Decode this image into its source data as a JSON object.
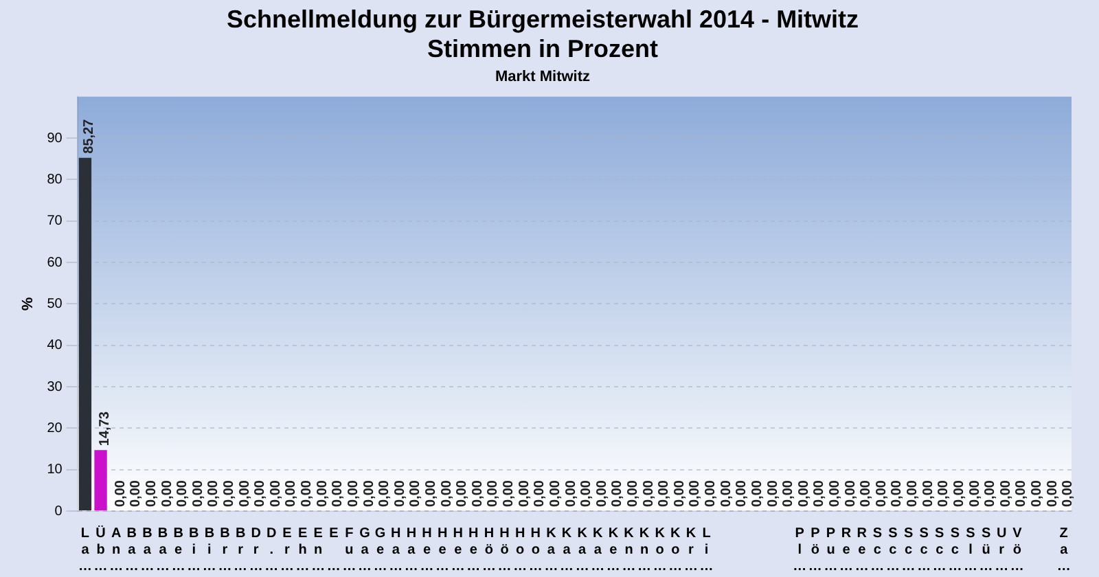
{
  "chart_data": {
    "type": "bar",
    "title": "Schnellmeldung zur Bürgermeisterwahl 2014 - Mitwitz\nStimmen in Prozent",
    "subtitle": "Markt Mitwitz",
    "ylabel": "%",
    "categories": [
      "L\na\n…",
      "Ü\nb\n…",
      "A\nn\n…",
      "B\na\n…",
      "B\na\n…",
      "B\na\n…",
      "B\ne\n…",
      "B\ni\n…",
      "B\ni\n…",
      "B\nr\n…",
      "B\nr\n…",
      "D\nr\n…",
      "D\n.\n…",
      "E\nr\n…",
      "E\nh\n…",
      "E\nn\n…",
      "E\n\n…",
      "F\nu\n…",
      "G\na\n…",
      "G\ne\n…",
      "H\na\n…",
      "H\na\n…",
      "H\ne\n…",
      "H\ne\n…",
      "H\ne\n…",
      "H\ne\n…",
      "H\nö\n…",
      "H\nö\n…",
      "H\no\n…",
      "H\no\n…",
      "K\na\n…",
      "K\na\n…",
      "K\na\n…",
      "K\na\n…",
      "K\ne\n…",
      "K\nn\n…",
      "K\nn\n…",
      "K\no\n…",
      "K\no\n…",
      "K\nr\n…",
      "L\ni\n…",
      null,
      null,
      null,
      null,
      null,
      "P\nl\n…",
      "P\nö\n…",
      "P\nu\n…",
      "R\ne\n…",
      "R\ne\n…",
      "S\nc\n…",
      "S\nc\n…",
      "S\nc\n…",
      "S\nc\n…",
      "S\nc\n…",
      "S\nc\n…",
      "S\nl\n…",
      "S\nü\n…",
      "U\nr\n…",
      "V\nö\n…",
      null,
      null,
      "Z\na\n…"
    ],
    "values": [
      85.27,
      14.73,
      0,
      0,
      0,
      0,
      0,
      0,
      0,
      0,
      0,
      0,
      0,
      0,
      0,
      0,
      0,
      0,
      0,
      0,
      0,
      0,
      0,
      0,
      0,
      0,
      0,
      0,
      0,
      0,
      0,
      0,
      0,
      0,
      0,
      0,
      0,
      0,
      0,
      0,
      0,
      0,
      0,
      0,
      0,
      0,
      0,
      0,
      0,
      0,
      0,
      0,
      0,
      0,
      0,
      0,
      0,
      0,
      0,
      0,
      0,
      0,
      0,
      0
    ],
    "value_labels": [
      "85,27",
      "14,73",
      "0,00",
      "0,00",
      "0,00",
      "0,00",
      "0,00",
      "0,00",
      "0,00",
      "0,00",
      "0,00",
      "0,00",
      "0,00",
      "0,00",
      "0,00",
      "0,00",
      "0,00",
      "0,00",
      "0,00",
      "0,00",
      "0,00",
      "0,00",
      "0,00",
      "0,00",
      "0,00",
      "0,00",
      "0,00",
      "0,00",
      "0,00",
      "0,00",
      "0,00",
      "0,00",
      "0,00",
      "0,00",
      "0,00",
      "0,00",
      "0,00",
      "0,00",
      "0,00",
      "0,00",
      "0,00",
      "0,00",
      "0,00",
      "0,00",
      "0,00",
      "0,00",
      "0,00",
      "0,00",
      "0,00",
      "0,00",
      "0,00",
      "0,00",
      "0,00",
      "0,00",
      "0,00",
      "0,00",
      "0,00",
      "0,00",
      "0,00",
      "0,00",
      "0,00",
      "0,00",
      "0,00",
      "0,00"
    ],
    "colors": [
      "#2b3038",
      "#cc11cc",
      "#2b3038",
      "#2b3038",
      "#2b3038",
      "#2b3038",
      "#2b3038",
      "#2b3038",
      "#2b3038",
      "#2b3038",
      "#2b3038",
      "#2b3038",
      "#2b3038",
      "#2b3038",
      "#2b3038",
      "#2b3038",
      "#2b3038",
      "#2b3038",
      "#2b3038",
      "#2b3038",
      "#2b3038",
      "#2b3038",
      "#2b3038",
      "#2b3038",
      "#2b3038",
      "#2b3038",
      "#2b3038",
      "#2b3038",
      "#2b3038",
      "#2b3038",
      "#2b3038",
      "#2b3038",
      "#2b3038",
      "#2b3038",
      "#2b3038",
      "#2b3038",
      "#2b3038",
      "#2b3038",
      "#2b3038",
      "#2b3038",
      "#2b3038",
      "#2b3038",
      "#2b3038",
      "#2b3038",
      "#2b3038",
      "#2b3038",
      "#2b3038",
      "#2b3038",
      "#2b3038",
      "#2b3038",
      "#2b3038",
      "#2b3038",
      "#2b3038",
      "#2b3038",
      "#2b3038",
      "#2b3038",
      "#2b3038",
      "#2b3038",
      "#2b3038",
      "#2b3038",
      "#2b3038",
      "#2b3038",
      "#2b3038",
      "#2b3038"
    ],
    "ylim": [
      0,
      100
    ],
    "yticks": [
      0,
      10,
      20,
      30,
      40,
      50,
      60,
      70,
      80,
      90
    ],
    "grid": "y",
    "legend": false
  }
}
